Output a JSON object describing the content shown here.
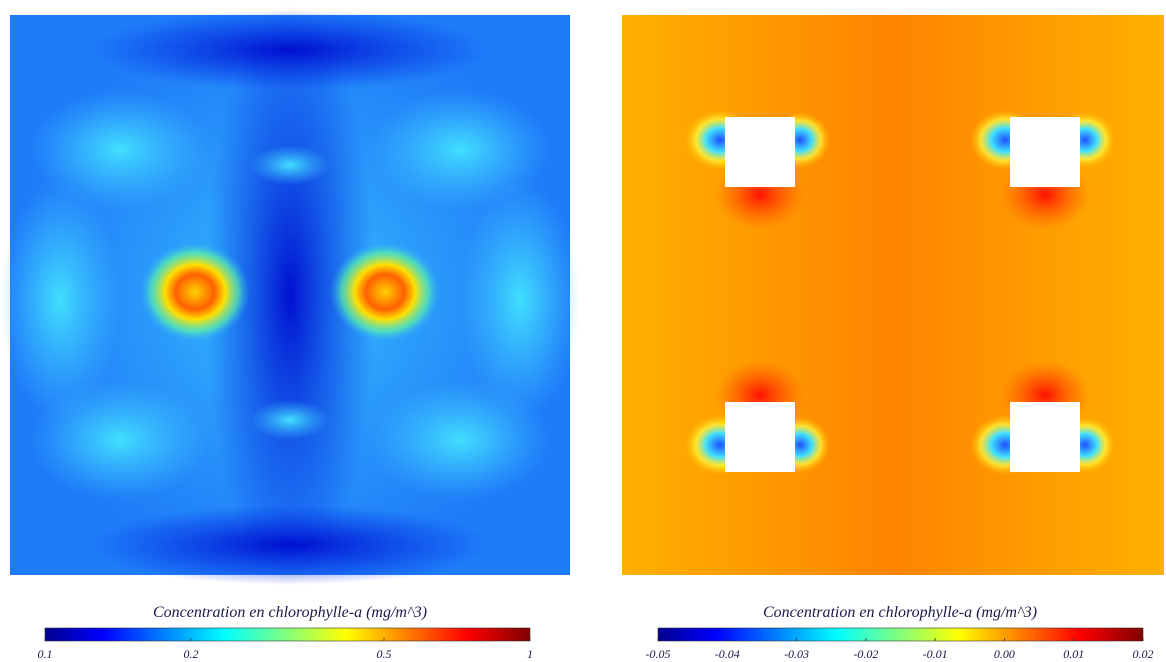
{
  "chart_data": [
    {
      "type": "heatmap",
      "title": "Concentration en chlorophylle-a (mg/m^3)",
      "clim": [
        0.1,
        1
      ],
      "log_scale": true,
      "colormap": "jet",
      "cticks": [
        0.1,
        0.2,
        0.5,
        1
      ]
    },
    {
      "type": "heatmap",
      "title": "Concentration en chlorophylle-a (mg/m^3)",
      "clim": [
        -0.05,
        0.02
      ],
      "log_scale": false,
      "colormap": "jet",
      "cticks": [
        -0.05,
        -0.04,
        -0.03,
        -0.02,
        -0.01,
        {
          "value": 0,
          "label": "0.00"
        },
        0.01,
        0.02
      ]
    }
  ]
}
